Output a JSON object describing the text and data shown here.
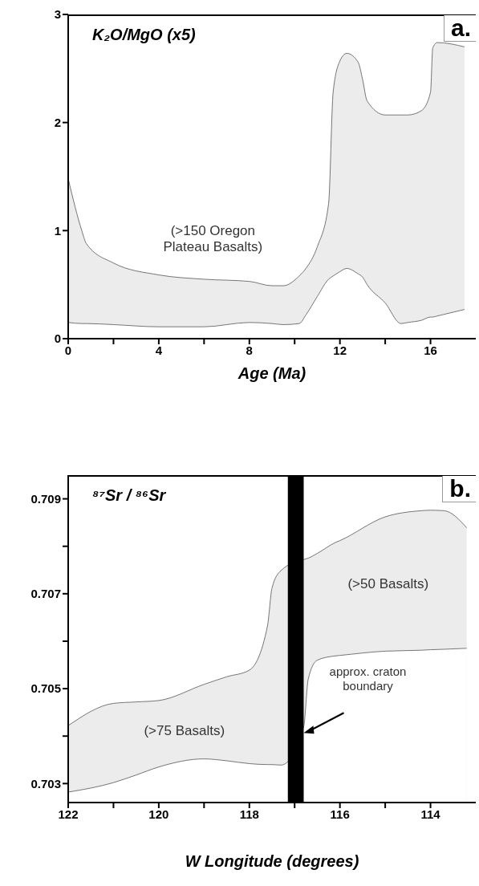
{
  "chart_data": [
    {
      "type": "area",
      "title": "K₂O/MgO (x5)",
      "xlabel": "Age (Ma)",
      "x": [
        0,
        0.6,
        0.8,
        2,
        4,
        6,
        8,
        9,
        9.5,
        10.2,
        10.5,
        11,
        11.5,
        11.7,
        12,
        12.3,
        12.8,
        13,
        13.2,
        14,
        14.7,
        15,
        15.6,
        16,
        16.1,
        16.3,
        17.5
      ],
      "series": [
        {
          "color": "#ececec",
          "values": [
            1.48,
            1.0,
            0.88,
            0.7,
            0.59,
            0.55,
            0.53,
            0.49,
            0.49,
            0.58,
            0.65,
            0.85,
            1.25,
            2.28,
            2.57,
            2.64,
            2.56,
            2.4,
            2.2,
            2.07,
            2.07,
            2.07,
            2.11,
            2.28,
            2.69,
            2.74,
            2.7
          ]
        },
        {
          "color": "#ffffff",
          "values": [
            0.15,
            0.14,
            0.14,
            0.13,
            0.11,
            0.11,
            0.15,
            0.14,
            0.13,
            0.14,
            0.22,
            0.39,
            0.55,
            0.58,
            0.62,
            0.65,
            0.6,
            0.57,
            0.5,
            0.33,
            0.14,
            0.15,
            0.17,
            0.2,
            0.2,
            0.21,
            0.27
          ]
        }
      ],
      "xlim": [
        0,
        18
      ],
      "ylim": [
        0,
        3
      ],
      "xticks": [
        0,
        {
          "value": 2,
          "label": null
        },
        4,
        {
          "value": 6,
          "label": null
        },
        8,
        {
          "value": 10,
          "label": null
        },
        12,
        {
          "value": 14,
          "label": null
        },
        16
      ],
      "yticks": [
        0,
        1,
        2,
        3
      ],
      "annotations": [
        "a.",
        "(>150 Oregon\nPlateau Basalts)"
      ]
    },
    {
      "type": "area",
      "title": "⁸⁷Sr / ⁸⁶Sr",
      "xlabel": "W Longitude (degrees)",
      "x": [
        122,
        121,
        120.5,
        120,
        119,
        118.5,
        118,
        117.6,
        117.5,
        117.3,
        116.8,
        116.7,
        116.5,
        116.1,
        116,
        115,
        114.2,
        114,
        113.7,
        113.2
      ],
      "series": [
        {
          "color": "#ececec",
          "values": [
            0.70422,
            0.70469,
            0.70472,
            0.70475,
            0.70509,
            0.70525,
            0.70539,
            0.70632,
            0.70712,
            0.70749,
            0.70772,
            0.70775,
            0.70785,
            0.70808,
            0.70812,
            0.70862,
            0.70875,
            0.70876,
            0.70875,
            0.70839
          ]
        },
        {
          "color": "#ffffff",
          "values": [
            0.70282,
            0.70302,
            0.70318,
            0.70335,
            0.70352,
            0.70348,
            0.70342,
            0.7034,
            0.7034,
            0.70339,
            0.7042,
            0.7052,
            0.7056,
            0.70569,
            0.7057,
            0.70579,
            0.70581,
            0.70582,
            0.70583,
            0.70585
          ]
        }
      ],
      "xlim": [
        122,
        113
      ],
      "ylim": [
        0.7026,
        0.7095
      ],
      "xticks": [
        122,
        {
          "value": 121,
          "label": null
        },
        120,
        {
          "value": 119,
          "label": null
        },
        118,
        {
          "value": 117,
          "label": null
        },
        116,
        {
          "value": 115,
          "label": null
        },
        114
      ],
      "yticks": [
        0.703,
        {
          "value": 0.704,
          "label": null
        },
        0.705,
        {
          "value": 0.706,
          "label": null
        },
        0.707,
        {
          "value": 0.708,
          "label": null
        },
        0.709
      ],
      "bands": [
        {
          "axis": "x",
          "from": 117.15,
          "to": 116.8,
          "color": "#000000",
          "label": "approx. craton\nboundary"
        }
      ],
      "annotations": [
        "b.",
        "(>75 Basalts)",
        "(>50 Basalts)"
      ]
    }
  ]
}
